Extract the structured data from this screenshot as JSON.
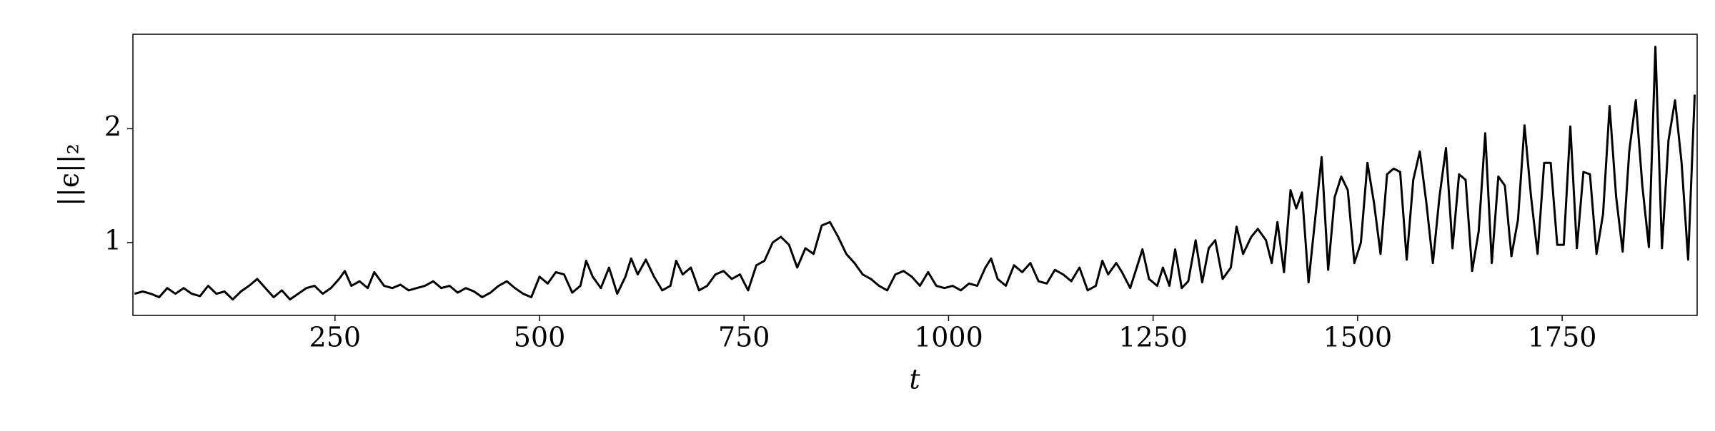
{
  "chart_data": {
    "type": "line",
    "xlabel": "t",
    "ylabel": "||ϵ||₂",
    "xlim": [
      3,
      1915
    ],
    "ylim": [
      0.36,
      2.83
    ],
    "xticks": [
      250,
      500,
      750,
      1000,
      1250,
      1500,
      1750
    ],
    "yticks": [
      1,
      2
    ],
    "grid": false,
    "series": [
      {
        "color": "#000000",
        "x": [
          5,
          15,
          25,
          35,
          45,
          55,
          65,
          75,
          85,
          95,
          105,
          115,
          125,
          135,
          145,
          155,
          165,
          175,
          185,
          195,
          205,
          215,
          225,
          235,
          245,
          255,
          262,
          270,
          280,
          290,
          298,
          310,
          320,
          330,
          340,
          350,
          360,
          370,
          380,
          390,
          400,
          410,
          420,
          430,
          440,
          450,
          460,
          470,
          480,
          490,
          500,
          510,
          520,
          530,
          540,
          550,
          557,
          565,
          575,
          585,
          595,
          605,
          612,
          620,
          630,
          640,
          650,
          660,
          667,
          675,
          685,
          695,
          705,
          715,
          725,
          735,
          745,
          755,
          765,
          775,
          785,
          795,
          805,
          815,
          825,
          835,
          845,
          855,
          865,
          875,
          885,
          895,
          905,
          915,
          925,
          935,
          945,
          955,
          965,
          975,
          985,
          995,
          1005,
          1015,
          1025,
          1035,
          1045,
          1052,
          1060,
          1070,
          1080,
          1090,
          1100,
          1110,
          1120,
          1130,
          1140,
          1150,
          1160,
          1170,
          1180,
          1188,
          1195,
          1205,
          1212,
          1222,
          1230,
          1237,
          1245,
          1255,
          1262,
          1270,
          1277,
          1285,
          1293,
          1302,
          1310,
          1318,
          1326,
          1335,
          1345,
          1352,
          1360,
          1370,
          1378,
          1388,
          1395,
          1402,
          1410,
          1418,
          1425,
          1432,
          1440,
          1448,
          1456,
          1464,
          1472,
          1480,
          1488,
          1496,
          1504,
          1512,
          1520,
          1528,
          1536,
          1544,
          1552,
          1560,
          1568,
          1576,
          1584,
          1592,
          1600,
          1608,
          1616,
          1624,
          1632,
          1640,
          1648,
          1656,
          1664,
          1672,
          1680,
          1688,
          1696,
          1704,
          1712,
          1720,
          1728,
          1736,
          1744,
          1752,
          1760,
          1768,
          1776,
          1784,
          1792,
          1800,
          1808,
          1816,
          1824,
          1832,
          1840,
          1848,
          1856,
          1864,
          1872,
          1880,
          1888,
          1896,
          1904,
          1912
        ],
        "values": [
          0.55,
          0.57,
          0.55,
          0.52,
          0.6,
          0.55,
          0.6,
          0.55,
          0.53,
          0.62,
          0.55,
          0.57,
          0.5,
          0.57,
          0.62,
          0.68,
          0.6,
          0.52,
          0.58,
          0.5,
          0.55,
          0.6,
          0.62,
          0.55,
          0.6,
          0.68,
          0.75,
          0.62,
          0.66,
          0.6,
          0.74,
          0.62,
          0.6,
          0.63,
          0.58,
          0.6,
          0.62,
          0.66,
          0.6,
          0.62,
          0.56,
          0.6,
          0.57,
          0.52,
          0.56,
          0.62,
          0.66,
          0.6,
          0.55,
          0.52,
          0.7,
          0.64,
          0.74,
          0.72,
          0.56,
          0.62,
          0.84,
          0.7,
          0.6,
          0.78,
          0.55,
          0.7,
          0.86,
          0.72,
          0.85,
          0.7,
          0.58,
          0.62,
          0.84,
          0.72,
          0.78,
          0.58,
          0.62,
          0.72,
          0.75,
          0.68,
          0.72,
          0.58,
          0.8,
          0.84,
          1.0,
          1.05,
          0.98,
          0.78,
          0.95,
          0.9,
          1.15,
          1.18,
          1.05,
          0.9,
          0.82,
          0.72,
          0.68,
          0.62,
          0.58,
          0.72,
          0.75,
          0.7,
          0.62,
          0.74,
          0.62,
          0.6,
          0.62,
          0.58,
          0.64,
          0.62,
          0.78,
          0.86,
          0.68,
          0.62,
          0.8,
          0.74,
          0.82,
          0.66,
          0.64,
          0.76,
          0.72,
          0.66,
          0.78,
          0.58,
          0.62,
          0.84,
          0.72,
          0.82,
          0.74,
          0.6,
          0.78,
          0.94,
          0.68,
          0.62,
          0.78,
          0.62,
          0.94,
          0.6,
          0.66,
          1.02,
          0.65,
          0.95,
          1.02,
          0.68,
          0.78,
          1.14,
          0.9,
          1.05,
          1.12,
          1.02,
          0.82,
          1.18,
          0.74,
          1.46,
          1.3,
          1.44,
          0.65,
          1.2,
          1.75,
          0.76,
          1.4,
          1.58,
          1.46,
          0.82,
          1.0,
          1.7,
          1.35,
          0.9,
          1.6,
          1.65,
          1.62,
          0.85,
          1.55,
          1.8,
          1.35,
          0.82,
          1.4,
          1.83,
          0.95,
          1.6,
          1.55,
          0.75,
          1.1,
          1.96,
          0.82,
          1.58,
          1.5,
          0.88,
          1.2,
          2.03,
          1.4,
          0.9,
          1.7,
          1.7,
          0.98,
          0.98,
          2.02,
          0.95,
          1.62,
          1.6,
          0.9,
          1.25,
          2.2,
          1.4,
          0.92,
          1.8,
          2.25,
          1.5,
          0.96,
          2.72,
          0.95,
          1.9,
          2.25,
          1.7,
          0.85,
          2.3
        ]
      }
    ]
  }
}
